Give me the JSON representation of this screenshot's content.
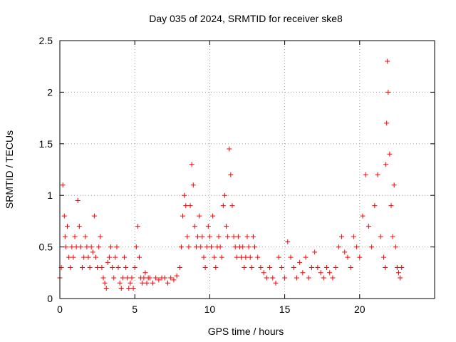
{
  "chart_data": {
    "type": "scatter",
    "title": "Day 035 of 2024, SRMTID for receiver ske8",
    "xlabel": "GPS time / hours",
    "ylabel": "SRMTID / TECUs",
    "xlim": [
      0,
      25
    ],
    "ylim": [
      0,
      2.5
    ],
    "xticks": [
      0,
      5,
      10,
      15,
      20
    ],
    "xtick_labels": [
      "0",
      "5",
      "10",
      "15",
      "20"
    ],
    "yticks": [
      0,
      0.5,
      1,
      1.5,
      2,
      2.5
    ],
    "ytick_labels": [
      "0",
      "0.5",
      "1",
      "1.5",
      "2",
      "2.5"
    ],
    "grid": true,
    "marker": "+",
    "color": "#ff0000",
    "series": [
      {
        "name": "SRMTID",
        "x": [
          0.0,
          0.1,
          0.2,
          0.3,
          0.35,
          0.4,
          0.5,
          0.6,
          0.7,
          0.8,
          0.9,
          1.0,
          1.1,
          1.2,
          1.3,
          1.4,
          1.5,
          1.6,
          1.7,
          1.8,
          1.9,
          2.0,
          2.1,
          2.2,
          2.3,
          2.4,
          2.5,
          2.6,
          2.7,
          2.8,
          2.9,
          3.0,
          3.1,
          3.2,
          3.3,
          3.4,
          3.5,
          3.6,
          3.7,
          3.8,
          3.9,
          4.0,
          4.1,
          4.2,
          4.3,
          4.4,
          4.5,
          4.6,
          4.7,
          4.8,
          4.9,
          5.0,
          5.1,
          5.2,
          5.3,
          5.4,
          5.5,
          5.6,
          5.7,
          5.8,
          5.9,
          6.0,
          6.2,
          6.4,
          6.6,
          6.8,
          7.0,
          7.2,
          7.4,
          7.6,
          7.8,
          8.0,
          8.1,
          8.2,
          8.3,
          8.4,
          8.5,
          8.6,
          8.7,
          8.8,
          8.9,
          9.0,
          9.1,
          9.2,
          9.3,
          9.4,
          9.5,
          9.6,
          9.7,
          9.8,
          9.9,
          10.0,
          10.1,
          10.2,
          10.3,
          10.4,
          10.5,
          10.6,
          10.7,
          10.8,
          10.9,
          11.0,
          11.1,
          11.2,
          11.3,
          11.4,
          11.5,
          11.6,
          11.7,
          11.8,
          11.9,
          12.0,
          12.1,
          12.2,
          12.3,
          12.4,
          12.5,
          12.6,
          12.7,
          12.8,
          12.9,
          13.0,
          13.2,
          13.4,
          13.6,
          13.8,
          14.0,
          14.2,
          14.4,
          14.6,
          14.8,
          15.0,
          15.2,
          15.4,
          15.6,
          15.8,
          16.0,
          16.2,
          16.4,
          16.6,
          16.8,
          17.0,
          17.2,
          17.4,
          17.6,
          17.8,
          18.0,
          18.2,
          18.4,
          18.6,
          18.8,
          19.0,
          19.2,
          19.4,
          19.6,
          19.8,
          20.0,
          20.2,
          20.4,
          20.6,
          20.8,
          21.0,
          21.2,
          21.4,
          21.6,
          21.7,
          21.75,
          21.8,
          21.85,
          21.9,
          22.0,
          22.1,
          22.2,
          22.3,
          22.4,
          22.5,
          22.6,
          22.7,
          22.8
        ],
        "y": [
          0.2,
          0.3,
          1.1,
          0.8,
          0.6,
          0.5,
          0.7,
          0.4,
          0.3,
          0.5,
          0.4,
          0.6,
          0.5,
          0.95,
          0.7,
          0.5,
          0.3,
          0.4,
          0.6,
          0.5,
          0.4,
          0.3,
          0.5,
          0.45,
          0.8,
          0.4,
          0.3,
          0.5,
          0.6,
          0.3,
          0.2,
          0.15,
          0.1,
          0.35,
          0.4,
          0.5,
          0.3,
          0.2,
          0.4,
          0.5,
          0.3,
          0.15,
          0.1,
          0.2,
          0.4,
          0.3,
          0.2,
          0.1,
          0.15,
          0.2,
          0.1,
          0.3,
          0.5,
          0.7,
          0.4,
          0.2,
          0.15,
          0.2,
          0.25,
          0.15,
          0.2,
          0.2,
          0.15,
          0.2,
          0.18,
          0.2,
          0.2,
          0.15,
          0.2,
          0.18,
          0.22,
          0.3,
          0.5,
          0.8,
          1.0,
          0.9,
          0.6,
          0.5,
          0.9,
          1.3,
          1.1,
          0.7,
          0.5,
          0.6,
          0.8,
          0.5,
          0.6,
          0.4,
          0.3,
          0.5,
          0.7,
          0.6,
          0.5,
          0.8,
          0.4,
          0.3,
          0.5,
          0.6,
          0.5,
          0.4,
          0.9,
          1.0,
          0.7,
          0.6,
          1.45,
          1.2,
          0.9,
          0.6,
          0.5,
          0.4,
          0.6,
          0.5,
          0.4,
          0.5,
          0.3,
          0.4,
          0.6,
          0.5,
          0.4,
          0.3,
          0.6,
          0.5,
          0.4,
          0.3,
          0.25,
          0.2,
          0.3,
          0.2,
          0.15,
          0.4,
          0.3,
          0.2,
          0.55,
          0.4,
          0.3,
          0.2,
          0.35,
          0.25,
          0.4,
          0.2,
          0.3,
          0.45,
          0.3,
          0.25,
          0.2,
          0.3,
          0.25,
          0.2,
          0.3,
          0.5,
          0.6,
          0.45,
          0.4,
          0.3,
          0.6,
          0.5,
          0.4,
          0.8,
          1.2,
          0.7,
          0.5,
          0.9,
          1.2,
          0.6,
          0.4,
          0.3,
          1.3,
          1.7,
          2.3,
          2.0,
          1.4,
          0.9,
          0.6,
          1.1,
          0.5,
          0.3,
          0.25,
          0.2,
          0.3
        ]
      }
    ]
  }
}
